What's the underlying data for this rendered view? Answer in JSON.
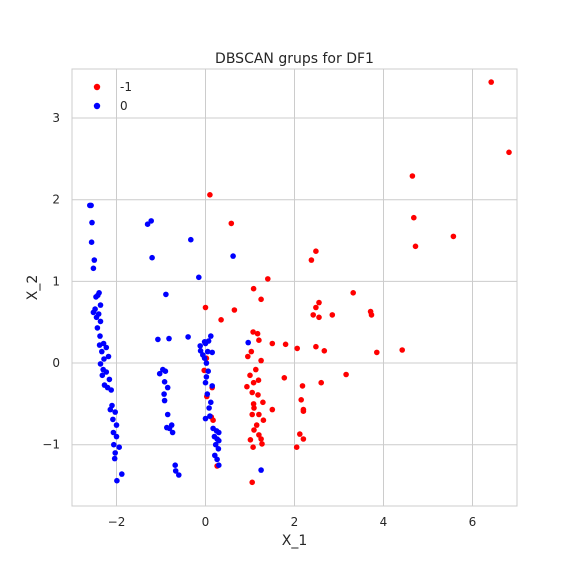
{
  "chart_data": {
    "type": "scatter",
    "title": "DBSCAN grups for DF1",
    "xlabel": "X_1",
    "ylabel": "X_2",
    "xlim": [
      -3.0,
      7.0
    ],
    "ylim": [
      -1.75,
      3.6
    ],
    "xticks": [
      -2,
      0,
      2,
      4,
      6
    ],
    "yticks": [
      -1,
      0,
      1,
      2,
      3
    ],
    "grid": true,
    "legend_position": "top-left",
    "series": [
      {
        "name": "-1",
        "color": "#ff0000",
        "points": [
          [
            6.42,
            3.44
          ],
          [
            6.82,
            2.58
          ],
          [
            4.65,
            2.29
          ],
          [
            4.68,
            1.78
          ],
          [
            5.57,
            1.55
          ],
          [
            4.72,
            1.43
          ],
          [
            0.1,
            2.06
          ],
          [
            0.58,
            1.71
          ],
          [
            2.48,
            1.37
          ],
          [
            2.38,
            1.26
          ],
          [
            1.4,
            1.03
          ],
          [
            1.08,
            0.91
          ],
          [
            1.25,
            0.78
          ],
          [
            3.32,
            0.86
          ],
          [
            2.55,
            0.74
          ],
          [
            2.48,
            0.68
          ],
          [
            3.71,
            0.63
          ],
          [
            3.73,
            0.59
          ],
          [
            2.85,
            0.59
          ],
          [
            2.42,
            0.59
          ],
          [
            2.55,
            0.56
          ],
          [
            0.35,
            0.53
          ],
          [
            0.0,
            0.68
          ],
          [
            0.65,
            0.65
          ],
          [
            1.07,
            0.38
          ],
          [
            1.17,
            0.36
          ],
          [
            1.5,
            0.24
          ],
          [
            1.8,
            0.23
          ],
          [
            2.06,
            0.18
          ],
          [
            2.48,
            0.2
          ],
          [
            2.67,
            0.15
          ],
          [
            3.85,
            0.13
          ],
          [
            4.42,
            0.16
          ],
          [
            1.2,
            0.28
          ],
          [
            1.03,
            0.14
          ],
          [
            0.95,
            0.08
          ],
          [
            1.25,
            0.03
          ],
          [
            1.13,
            -0.08
          ],
          [
            1.0,
            -0.15
          ],
          [
            1.08,
            -0.24
          ],
          [
            1.19,
            -0.21
          ],
          [
            3.16,
            -0.14
          ],
          [
            2.6,
            -0.24
          ],
          [
            1.77,
            -0.18
          ],
          [
            2.18,
            -0.28
          ],
          [
            0.93,
            -0.29
          ],
          [
            1.05,
            -0.36
          ],
          [
            1.18,
            -0.39
          ],
          [
            2.15,
            -0.45
          ],
          [
            2.2,
            -0.57
          ],
          [
            2.2,
            -0.59
          ],
          [
            1.5,
            -0.57
          ],
          [
            1.08,
            -0.5
          ],
          [
            1.05,
            -0.63
          ],
          [
            1.2,
            -0.63
          ],
          [
            1.3,
            -0.7
          ],
          [
            1.15,
            -0.76
          ],
          [
            1.09,
            -0.82
          ],
          [
            1.2,
            -0.88
          ],
          [
            1.25,
            -0.93
          ],
          [
            2.12,
            -0.87
          ],
          [
            2.2,
            -0.93
          ],
          [
            2.05,
            -1.03
          ],
          [
            1.01,
            -0.94
          ],
          [
            1.07,
            -1.03
          ],
          [
            1.27,
            -0.99
          ],
          [
            1.05,
            -1.46
          ],
          [
            0.15,
            -0.3
          ],
          [
            0.03,
            -0.41
          ],
          [
            0.13,
            -0.66
          ],
          [
            0.17,
            -0.7
          ],
          [
            0.26,
            -1.26
          ],
          [
            1.09,
            -0.55
          ],
          [
            1.29,
            -0.48
          ],
          [
            0.02,
            0.06
          ],
          [
            -0.03,
            -0.09
          ]
        ]
      },
      {
        "name": "0",
        "color": "#0000ff",
        "points": [
          [
            -2.6,
            1.93
          ],
          [
            -2.57,
            1.93
          ],
          [
            -2.55,
            1.72
          ],
          [
            -2.56,
            1.48
          ],
          [
            -2.5,
            1.26
          ],
          [
            -2.52,
            1.16
          ],
          [
            -2.39,
            0.86
          ],
          [
            -2.42,
            0.83
          ],
          [
            -2.46,
            0.81
          ],
          [
            -2.36,
            0.71
          ],
          [
            -2.48,
            0.66
          ],
          [
            -2.4,
            0.6
          ],
          [
            -2.52,
            0.62
          ],
          [
            -2.45,
            0.56
          ],
          [
            -2.36,
            0.51
          ],
          [
            -2.43,
            0.43
          ],
          [
            -2.37,
            0.33
          ],
          [
            -2.29,
            0.24
          ],
          [
            -2.38,
            0.22
          ],
          [
            -2.23,
            0.19
          ],
          [
            -2.33,
            0.14
          ],
          [
            -2.18,
            0.08
          ],
          [
            -2.28,
            0.05
          ],
          [
            -2.36,
            -0.01
          ],
          [
            -2.3,
            -0.08
          ],
          [
            -2.23,
            -0.11
          ],
          [
            -2.32,
            -0.15
          ],
          [
            -2.16,
            -0.2
          ],
          [
            -2.27,
            -0.27
          ],
          [
            -2.2,
            -0.3
          ],
          [
            -2.12,
            -0.33
          ],
          [
            -2.1,
            -0.52
          ],
          [
            -2.14,
            -0.57
          ],
          [
            -2.03,
            -0.6
          ],
          [
            -2.08,
            -0.69
          ],
          [
            -2.0,
            -0.76
          ],
          [
            -2.07,
            -0.85
          ],
          [
            -2.0,
            -0.9
          ],
          [
            -2.06,
            -1.0
          ],
          [
            -1.94,
            -1.03
          ],
          [
            -2.03,
            -1.1
          ],
          [
            -2.04,
            -1.17
          ],
          [
            -1.88,
            -1.36
          ],
          [
            -1.99,
            -1.44
          ],
          [
            -1.22,
            1.74
          ],
          [
            -1.3,
            1.7
          ],
          [
            -1.2,
            1.29
          ],
          [
            -0.33,
            1.51
          ],
          [
            -0.15,
            1.05
          ],
          [
            0.62,
            1.31
          ],
          [
            -0.89,
            0.84
          ],
          [
            -1.07,
            0.29
          ],
          [
            -0.82,
            0.3
          ],
          [
            -0.39,
            0.32
          ],
          [
            -0.11,
            0.15
          ],
          [
            -0.96,
            -0.08
          ],
          [
            -0.9,
            -0.1
          ],
          [
            -1.03,
            -0.13
          ],
          [
            -0.92,
            -0.23
          ],
          [
            -0.85,
            -0.3
          ],
          [
            -0.93,
            -0.38
          ],
          [
            -0.92,
            -0.46
          ],
          [
            -0.85,
            -0.63
          ],
          [
            -0.81,
            -0.8
          ],
          [
            -0.76,
            -0.76
          ],
          [
            -0.87,
            -0.79
          ],
          [
            -0.74,
            -0.85
          ],
          [
            -0.68,
            -1.25
          ],
          [
            -0.67,
            -1.32
          ],
          [
            -0.6,
            -1.37
          ],
          [
            -0.02,
            0.26
          ],
          [
            0.07,
            0.27
          ],
          [
            0.12,
            0.33
          ],
          [
            0.0,
            0.24
          ],
          [
            0.05,
            0.14
          ],
          [
            -0.06,
            0.1
          ],
          [
            0.02,
            -0.17
          ],
          [
            0.0,
            -0.24
          ],
          [
            0.04,
            -0.38
          ],
          [
            0.12,
            -0.48
          ],
          [
            0.08,
            -0.55
          ],
          [
            0.1,
            -0.65
          ],
          [
            0.17,
            -0.8
          ],
          [
            0.25,
            -0.83
          ],
          [
            0.3,
            -0.85
          ],
          [
            0.2,
            -0.9
          ],
          [
            0.26,
            -0.93
          ],
          [
            0.3,
            -0.95
          ],
          [
            0.23,
            -1.0
          ],
          [
            0.29,
            -1.05
          ],
          [
            0.21,
            -1.13
          ],
          [
            0.26,
            -1.18
          ],
          [
            0.3,
            -1.25
          ],
          [
            0.15,
            -0.28
          ],
          [
            0.0,
            -0.68
          ],
          [
            1.25,
            -1.31
          ],
          [
            0.96,
            0.25
          ],
          [
            -0.12,
            0.21
          ],
          [
            -0.02,
            0.06
          ],
          [
            0.02,
            0.0
          ],
          [
            0.06,
            -0.1
          ],
          [
            0.15,
            0.13
          ]
        ]
      }
    ]
  }
}
